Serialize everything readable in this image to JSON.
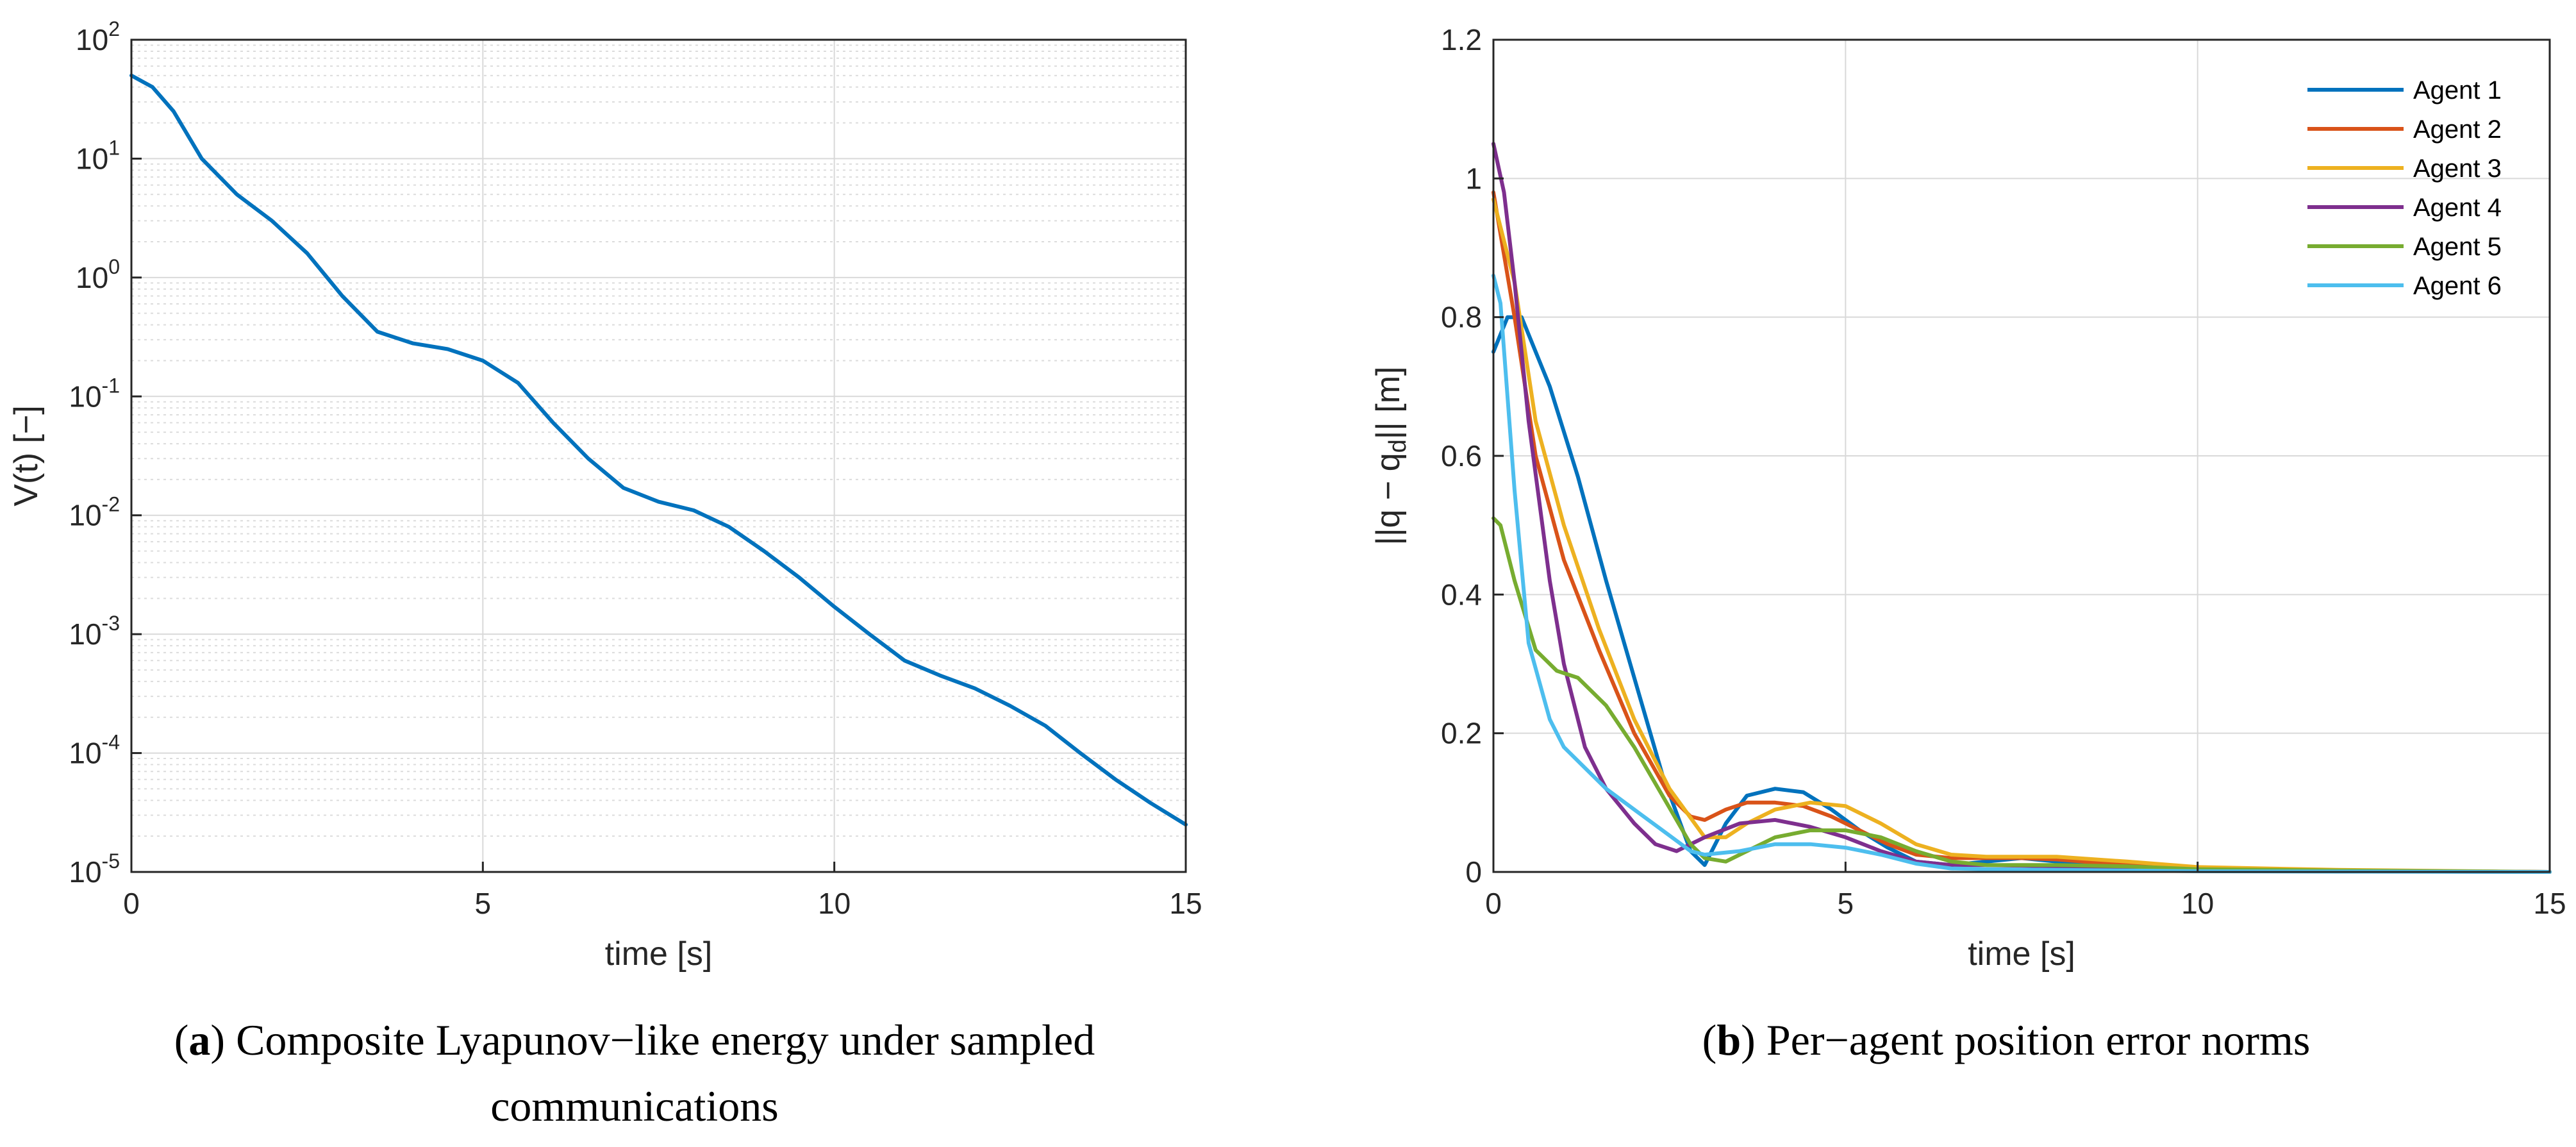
{
  "chart_data": [
    {
      "id": "a",
      "type": "line",
      "yscale": "log",
      "xlabel": "time [s]",
      "ylabel": "V(t) [−]",
      "xlim": [
        0,
        15
      ],
      "ylim": [
        1e-05,
        100
      ],
      "x_ticks": [
        0,
        5,
        10,
        15
      ],
      "y_ticks": [
        {
          "value": 1e-05,
          "base": "10",
          "exp": "-5"
        },
        {
          "value": 0.0001,
          "base": "10",
          "exp": "-4"
        },
        {
          "value": 0.001,
          "base": "10",
          "exp": "-3"
        },
        {
          "value": 0.01,
          "base": "10",
          "exp": "-2"
        },
        {
          "value": 0.1,
          "base": "10",
          "exp": "-1"
        },
        {
          "value": 1,
          "base": "10",
          "exp": "0"
        },
        {
          "value": 10,
          "base": "10",
          "exp": "1"
        },
        {
          "value": 100,
          "base": "10",
          "exp": "2"
        }
      ],
      "grid": true,
      "minor_grid": true,
      "series": [
        {
          "color": "#0072BD",
          "x": [
            0,
            0.3,
            0.6,
            1.0,
            1.5,
            2.0,
            2.5,
            3.0,
            3.5,
            4.0,
            4.5,
            5.0,
            5.5,
            6.0,
            6.5,
            7.0,
            7.5,
            8.0,
            8.5,
            9.0,
            9.5,
            10.0,
            10.5,
            11.0,
            11.5,
            12.0,
            12.5,
            13.0,
            13.5,
            14.0,
            14.5,
            15.0
          ],
          "y": [
            50,
            40,
            25,
            10,
            5,
            3,
            1.6,
            0.7,
            0.35,
            0.28,
            0.25,
            0.2,
            0.13,
            0.06,
            0.03,
            0.017,
            0.013,
            0.011,
            0.008,
            0.005,
            0.003,
            0.0017,
            0.001,
            0.0006,
            0.00045,
            0.00035,
            0.00025,
            0.00017,
            0.0001,
            6e-05,
            3.8e-05,
            2.5e-05
          ]
        }
      ],
      "caption_letter": "a",
      "caption_text_line1": " Composite Lyapunov−like energy under sampled",
      "caption_text_line2": "communications"
    },
    {
      "id": "b",
      "type": "line",
      "xlabel": "time [s]",
      "ylabel_main": "||q − q",
      "ylabel_sub": "d",
      "ylabel_end": "|| [m]",
      "xlim": [
        0,
        15
      ],
      "ylim": [
        0,
        1.2
      ],
      "x_ticks": [
        0,
        5,
        10,
        15
      ],
      "y_ticks": [
        0,
        0.2,
        0.4,
        0.6,
        0.8,
        1,
        1.2
      ],
      "y_tick_labels": [
        "0",
        "0.2",
        "0.4",
        "0.6",
        "0.8",
        "1",
        "1.2"
      ],
      "grid": true,
      "legend": "top-right",
      "series": [
        {
          "name": "Agent 1",
          "color": "#0072BD",
          "x": [
            0,
            0.2,
            0.4,
            0.8,
            1.2,
            1.6,
            2.0,
            2.4,
            2.8,
            3.0,
            3.3,
            3.6,
            4.0,
            4.4,
            4.8,
            5.2,
            5.6,
            6.0,
            6.5,
            7.0,
            7.5,
            8.0,
            9.0,
            10.0,
            12.0,
            15.0
          ],
          "y": [
            0.75,
            0.8,
            0.8,
            0.7,
            0.57,
            0.42,
            0.28,
            0.14,
            0.03,
            0.01,
            0.07,
            0.11,
            0.12,
            0.115,
            0.09,
            0.06,
            0.035,
            0.015,
            0.01,
            0.015,
            0.02,
            0.015,
            0.008,
            0.005,
            0.002,
            0.0
          ]
        },
        {
          "name": "Agent 2",
          "color": "#D95319",
          "x": [
            0,
            0.3,
            0.6,
            1.0,
            1.5,
            2.0,
            2.5,
            2.8,
            3.0,
            3.3,
            3.6,
            4.0,
            4.4,
            4.8,
            5.2,
            5.6,
            6.0,
            6.5,
            7.0,
            7.5,
            8.0,
            9.0,
            10.0,
            12.0,
            15.0
          ],
          "y": [
            0.98,
            0.8,
            0.6,
            0.45,
            0.32,
            0.2,
            0.11,
            0.08,
            0.075,
            0.09,
            0.1,
            0.1,
            0.095,
            0.08,
            0.06,
            0.04,
            0.025,
            0.02,
            0.02,
            0.02,
            0.018,
            0.01,
            0.005,
            0.002,
            0.0
          ]
        },
        {
          "name": "Agent 3",
          "color": "#EDB120",
          "x": [
            0,
            0.3,
            0.6,
            1.0,
            1.5,
            2.0,
            2.5,
            3.0,
            3.3,
            3.6,
            4.0,
            4.5,
            5.0,
            5.5,
            6.0,
            6.5,
            7.0,
            7.5,
            8.0,
            9.0,
            10.0,
            12.0,
            15.0
          ],
          "y": [
            0.97,
            0.85,
            0.65,
            0.5,
            0.35,
            0.22,
            0.12,
            0.05,
            0.05,
            0.07,
            0.09,
            0.1,
            0.095,
            0.07,
            0.04,
            0.025,
            0.022,
            0.022,
            0.022,
            0.015,
            0.007,
            0.003,
            0.0
          ]
        },
        {
          "name": "Agent 4",
          "color": "#7E2F8E",
          "x": [
            0,
            0.15,
            0.3,
            0.5,
            0.8,
            1.0,
            1.3,
            1.6,
            2.0,
            2.3,
            2.6,
            3.0,
            3.5,
            4.0,
            4.5,
            5.0,
            5.5,
            6.0,
            6.5,
            7.0,
            8.0,
            9.0,
            10.0,
            12.0,
            15.0
          ],
          "y": [
            1.05,
            0.98,
            0.85,
            0.65,
            0.42,
            0.3,
            0.18,
            0.12,
            0.07,
            0.04,
            0.03,
            0.05,
            0.07,
            0.075,
            0.065,
            0.05,
            0.03,
            0.015,
            0.01,
            0.01,
            0.008,
            0.005,
            0.003,
            0.001,
            0.0
          ]
        },
        {
          "name": "Agent 5",
          "color": "#77AC30",
          "x": [
            0,
            0.1,
            0.3,
            0.6,
            0.9,
            1.2,
            1.6,
            2.0,
            2.4,
            2.8,
            3.0,
            3.3,
            3.6,
            4.0,
            4.5,
            5.0,
            5.5,
            6.0,
            6.5,
            7.0,
            8.0,
            9.0,
            10.0,
            12.0,
            15.0
          ],
          "y": [
            0.51,
            0.5,
            0.42,
            0.32,
            0.29,
            0.28,
            0.24,
            0.18,
            0.11,
            0.04,
            0.02,
            0.015,
            0.03,
            0.05,
            0.06,
            0.06,
            0.05,
            0.03,
            0.015,
            0.01,
            0.01,
            0.008,
            0.004,
            0.002,
            0.0
          ]
        },
        {
          "name": "Agent 6",
          "color": "#4DBEEE",
          "x": [
            0,
            0.1,
            0.3,
            0.5,
            0.8,
            1.0,
            1.3,
            1.6,
            2.0,
            2.4,
            2.8,
            3.0,
            3.5,
            4.0,
            4.5,
            5.0,
            5.5,
            6.0,
            6.5,
            7.0,
            8.0,
            9.0,
            10.0,
            12.0,
            15.0
          ],
          "y": [
            0.86,
            0.82,
            0.55,
            0.33,
            0.22,
            0.18,
            0.15,
            0.12,
            0.09,
            0.06,
            0.03,
            0.025,
            0.03,
            0.04,
            0.04,
            0.035,
            0.025,
            0.012,
            0.005,
            0.004,
            0.003,
            0.002,
            0.001,
            0.0005,
            0.0
          ]
        }
      ],
      "caption_letter": "b",
      "caption_text_line1": " Per−agent position error norms"
    }
  ]
}
